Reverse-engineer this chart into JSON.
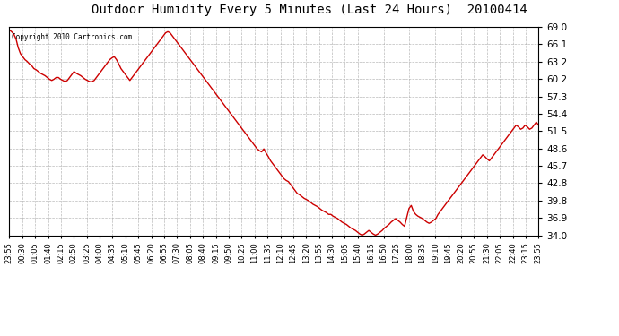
{
  "title": "Outdoor Humidity Every 5 Minutes (Last 24 Hours)  20100414",
  "copyright_text": "Copyright 2010 Cartronics.com",
  "line_color": "#cc0000",
  "bg_color": "#ffffff",
  "plot_bg_color": "#ffffff",
  "grid_color": "#aaaaaa",
  "ylim": [
    34.0,
    69.0
  ],
  "yticks": [
    34.0,
    36.9,
    39.8,
    42.8,
    45.7,
    48.6,
    51.5,
    54.4,
    57.3,
    60.2,
    63.2,
    66.1,
    69.0
  ],
  "xtick_labels": [
    "23:55",
    "00:30",
    "01:05",
    "01:40",
    "02:15",
    "02:50",
    "03:25",
    "04:00",
    "04:35",
    "05:10",
    "05:45",
    "06:20",
    "06:55",
    "07:30",
    "08:05",
    "08:40",
    "09:15",
    "09:50",
    "10:25",
    "11:00",
    "11:35",
    "12:10",
    "12:45",
    "13:20",
    "13:55",
    "14:30",
    "15:05",
    "15:40",
    "16:15",
    "16:50",
    "17:25",
    "18:00",
    "18:35",
    "19:10",
    "19:45",
    "20:20",
    "20:55",
    "21:30",
    "22:05",
    "22:40",
    "23:15",
    "23:55"
  ],
  "humidity_values": [
    68.5,
    68.2,
    67.8,
    67.0,
    65.5,
    64.5,
    64.0,
    63.5,
    63.2,
    62.8,
    62.5,
    62.0,
    61.8,
    61.5,
    61.2,
    61.0,
    60.8,
    60.5,
    60.2,
    60.0,
    60.2,
    60.5,
    60.5,
    60.2,
    60.0,
    59.8,
    60.0,
    60.5,
    61.0,
    61.5,
    61.2,
    61.0,
    60.8,
    60.5,
    60.2,
    60.0,
    59.8,
    59.8,
    60.0,
    60.5,
    61.0,
    61.5,
    62.0,
    62.5,
    63.0,
    63.5,
    63.8,
    64.0,
    63.5,
    62.8,
    62.0,
    61.5,
    61.0,
    60.5,
    60.0,
    60.5,
    61.0,
    61.5,
    62.0,
    62.5,
    63.0,
    63.5,
    64.0,
    64.5,
    65.0,
    65.5,
    66.0,
    66.5,
    67.0,
    67.5,
    68.0,
    68.2,
    68.0,
    67.5,
    67.0,
    66.5,
    66.0,
    65.5,
    65.0,
    64.5,
    64.0,
    63.5,
    63.0,
    62.5,
    62.0,
    61.5,
    61.0,
    60.5,
    60.0,
    59.5,
    59.0,
    58.5,
    58.0,
    57.5,
    57.0,
    56.5,
    56.0,
    55.5,
    55.0,
    54.5,
    54.0,
    53.5,
    53.0,
    52.5,
    52.0,
    51.5,
    51.0,
    50.5,
    50.0,
    49.5,
    49.0,
    48.5,
    48.2,
    48.0,
    48.5,
    47.8,
    47.2,
    46.5,
    46.0,
    45.5,
    45.0,
    44.5,
    44.0,
    43.5,
    43.2,
    43.0,
    42.5,
    42.0,
    41.5,
    41.0,
    40.8,
    40.5,
    40.2,
    40.0,
    39.8,
    39.5,
    39.2,
    39.0,
    38.8,
    38.5,
    38.2,
    38.0,
    37.8,
    37.5,
    37.5,
    37.2,
    37.0,
    36.8,
    36.5,
    36.2,
    36.0,
    35.8,
    35.5,
    35.2,
    35.0,
    34.8,
    34.5,
    34.2,
    34.0,
    34.2,
    34.5,
    34.8,
    34.5,
    34.2,
    34.0,
    34.2,
    34.5,
    34.8,
    35.2,
    35.5,
    35.8,
    36.2,
    36.5,
    36.8,
    36.5,
    36.2,
    35.8,
    35.5,
    37.0,
    38.5,
    39.0,
    38.0,
    37.5,
    37.2,
    37.0,
    36.8,
    36.5,
    36.2,
    36.0,
    36.2,
    36.5,
    36.8,
    37.5,
    38.0,
    38.5,
    39.0,
    39.5,
    40.0,
    40.5,
    41.0,
    41.5,
    42.0,
    42.5,
    43.0,
    43.5,
    44.0,
    44.5,
    45.0,
    45.5,
    46.0,
    46.5,
    47.0,
    47.5,
    47.2,
    46.8,
    46.5,
    47.0,
    47.5,
    48.0,
    48.5,
    49.0,
    49.5,
    50.0,
    50.5,
    51.0,
    51.5,
    52.0,
    52.5,
    52.2,
    51.8,
    52.0,
    52.5,
    52.2,
    51.8,
    52.0,
    52.5,
    53.0,
    52.5
  ]
}
